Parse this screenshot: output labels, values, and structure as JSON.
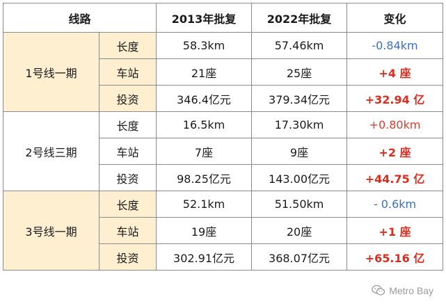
{
  "headers": {
    "line": "线路",
    "year2013": "2013年批复",
    "year2022": "2022年批复",
    "change": "变化"
  },
  "groups": [
    {
      "name": "1号线一期",
      "rows": [
        {
          "metric": "长度",
          "v2013": "58.3km",
          "v2022": "57.46km",
          "change": "-0.84km",
          "change_style": "neg"
        },
        {
          "metric": "车站",
          "v2013": "21座",
          "v2022": "25座",
          "change": "+4 座",
          "change_style": "pos-bold"
        },
        {
          "metric": "投资",
          "v2013": "346.4亿元",
          "v2022": "379.34亿元",
          "change": "+32.94 亿",
          "change_style": "pos-bold"
        }
      ]
    },
    {
      "name": "2号线三期",
      "rows": [
        {
          "metric": "长度",
          "v2013": "16.5km",
          "v2022": "17.30km",
          "change": "+0.80km",
          "change_style": "pos"
        },
        {
          "metric": "车站",
          "v2013": "7座",
          "v2022": "9座",
          "change": "+2 座",
          "change_style": "pos-bold"
        },
        {
          "metric": "投资",
          "v2013": "98.25亿元",
          "v2022": "143.00亿元",
          "change": "+44.75 亿",
          "change_style": "pos-bold"
        }
      ]
    },
    {
      "name": "3号线一期",
      "rows": [
        {
          "metric": "长度",
          "v2013": "52.1km",
          "v2022": "51.50km",
          "change": "- 0.6km",
          "change_style": "neg"
        },
        {
          "metric": "车站",
          "v2013": "19座",
          "v2022": "20座",
          "change": "+1 座",
          "change_style": "pos-bold"
        },
        {
          "metric": "投资",
          "v2013": "302.91亿元",
          "v2022": "368.07亿元",
          "change": "+65.16 亿",
          "change_style": "pos-bold"
        }
      ]
    }
  ],
  "colors": {
    "group_shade": "#fdefd0",
    "negative": "#3a6fc4",
    "positive": "#e02a1c"
  },
  "watermark": {
    "text": "Metro Bay",
    "icon": "wechat-icon"
  }
}
